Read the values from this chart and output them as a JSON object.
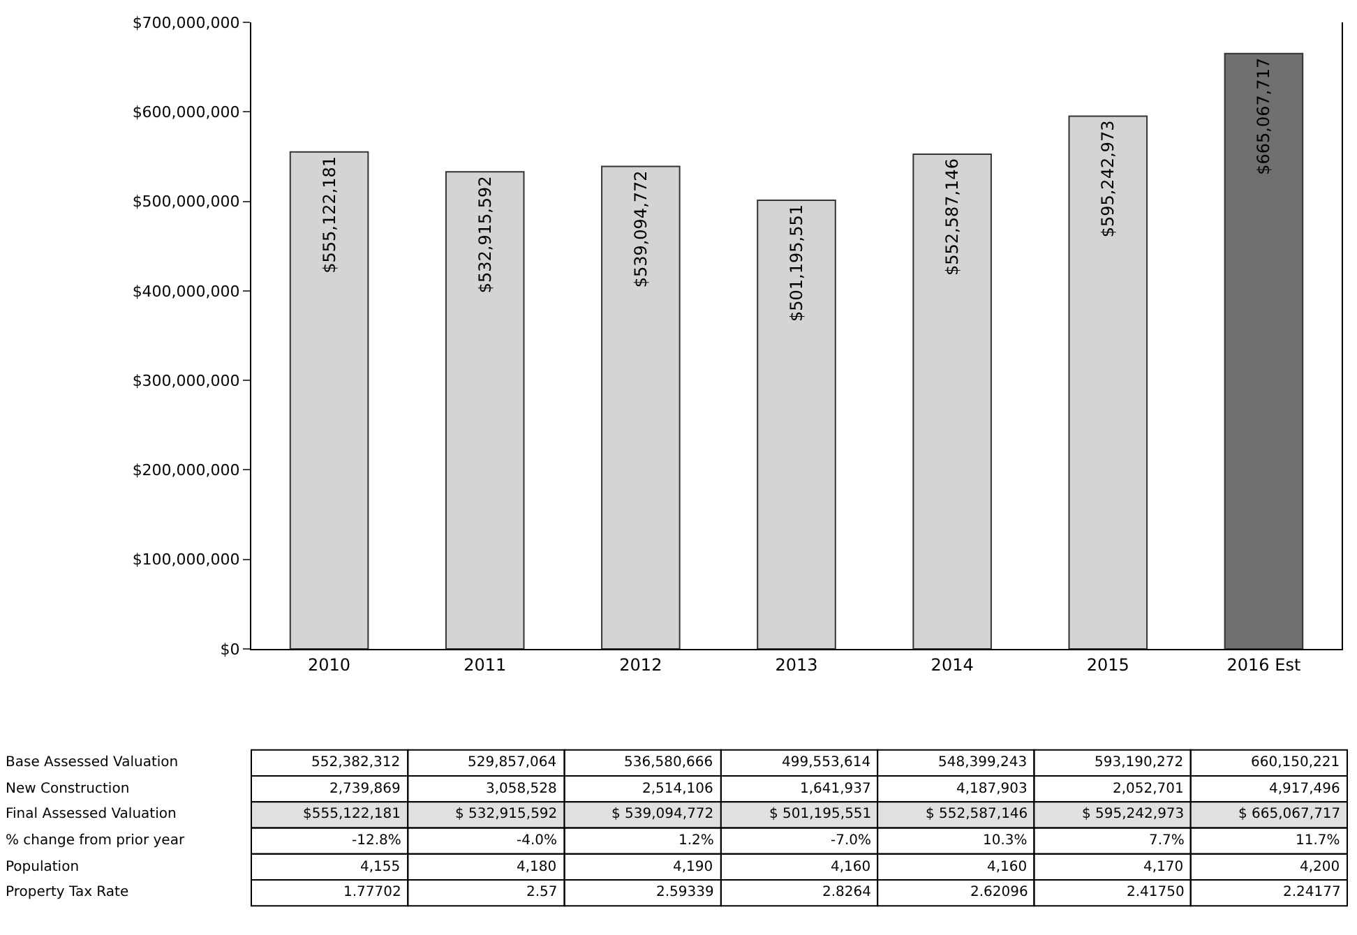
{
  "chart_data": {
    "type": "bar",
    "categories": [
      "2010",
      "2011",
      "2012",
      "2013",
      "2014",
      "2015",
      "2016 Est"
    ],
    "values": [
      555122181,
      532915592,
      539094772,
      501195551,
      552587146,
      595242973,
      665067717
    ],
    "value_labels": [
      "$555,122,181",
      "$532,915,592",
      "$539,094,772",
      "$501,195,551",
      "$552,587,146",
      "$595,242,973",
      "$665,067,717"
    ],
    "colors": [
      "#d4d4d4",
      "#d4d4d4",
      "#d4d4d4",
      "#d4d4d4",
      "#d4d4d4",
      "#d4d4d4",
      "#707070"
    ],
    "ylim": [
      0,
      700000000
    ],
    "yticks": [
      {
        "value": 0,
        "label": "$0"
      },
      {
        "value": 100000000,
        "label": "$100,000,000"
      },
      {
        "value": 200000000,
        "label": "$200,000,000"
      },
      {
        "value": 300000000,
        "label": "$300,000,000"
      },
      {
        "value": 400000000,
        "label": "$400,000,000"
      },
      {
        "value": 500000000,
        "label": "$500,000,000"
      },
      {
        "value": 600000000,
        "label": "$600,000,000"
      },
      {
        "value": 700000000,
        "label": "$700,000,000"
      }
    ],
    "grid": false,
    "annotations": [
      "Base Assessed Valuation",
      "552,382,312",
      "529,857,064",
      "536,580,666",
      "499,553,614",
      "548,399,243",
      "593,190,272",
      "660,150,221",
      "New Construction",
      "2,739,869",
      "3,058,528",
      "2,514,106",
      "1,641,937",
      "4,187,903",
      "2,052,701",
      "4,917,496",
      "Final Assessed Valuation",
      "$555,122,181",
      "$ 532,915,592",
      "$ 539,094,772",
      "$ 501,195,551",
      "$ 552,587,146",
      "$ 595,242,973",
      "$ 665,067,717",
      "% change from prior year",
      "-12.8%",
      "-4.0%",
      "1.2%",
      "-7.0%",
      "10.3%",
      "7.7%",
      "11.7%",
      "Population",
      "4,155",
      "4,180",
      "4,190",
      "4,160",
      "4,160",
      "4,170",
      "4,200",
      "Property Tax Rate",
      "1.77702",
      "2.57",
      "2.59339",
      "2.8264",
      "2.62096",
      "2.41750",
      "2.24177"
    ]
  }
}
